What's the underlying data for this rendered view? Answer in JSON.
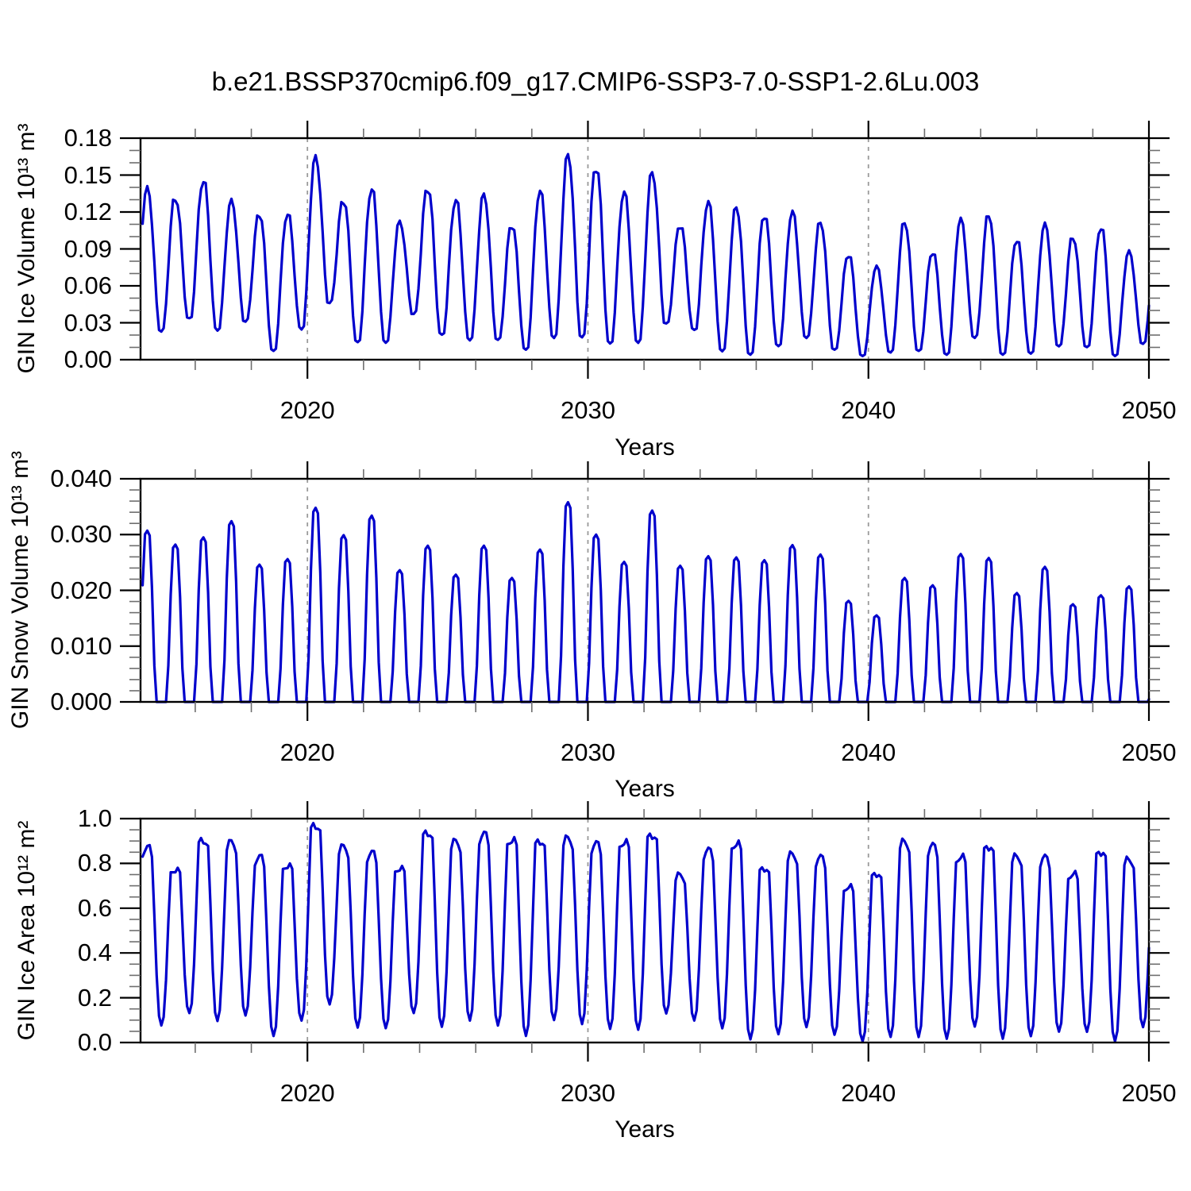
{
  "title": "b.e21.BSSP370cmip6.f09_g17.CMIP6-SSP3-7.0-SSP1-2.6Lu.003",
  "colors": {
    "line": "#0000cc",
    "frame": "#000000",
    "minor_tick": "#6e6e6e",
    "gridline": "#9a9a9a"
  },
  "x_axis": {
    "label": "Years",
    "min": 2014.05,
    "max": 2050,
    "major_ticks": [
      2020,
      2030,
      2040,
      2050
    ],
    "major_tick_labels": [
      "2020",
      "2030",
      "2040",
      "2050"
    ],
    "minor_tick_interval": 2,
    "dashed_gridlines": [
      2020,
      2030,
      2040
    ]
  },
  "chart_data": [
    {
      "type": "line",
      "name": "gin-ice-volume",
      "ylabel": "GIN Ice Volume 10¹³ m³",
      "xlabel": "Years",
      "ylim": [
        0,
        0.18
      ],
      "ytick_values": [
        0.0,
        0.03,
        0.06,
        0.09,
        0.12,
        0.15,
        0.18
      ],
      "ytick_labels": [
        "0.00",
        "0.03",
        "0.06",
        "0.09",
        "0.12",
        "0.15",
        "0.18"
      ],
      "yminor_step": 0.01,
      "seasonal_series": {
        "years": [
          2014,
          2015,
          2016,
          2017,
          2018,
          2019,
          2020,
          2021,
          2022,
          2023,
          2024,
          2025,
          2026,
          2027,
          2028,
          2029,
          2030,
          2031,
          2032,
          2033,
          2034,
          2035,
          2036,
          2037,
          2038,
          2039,
          2040,
          2041,
          2042,
          2043,
          2044,
          2045,
          2046,
          2047,
          2048,
          2049
        ],
        "winter_max": [
          0.138,
          0.131,
          0.145,
          0.128,
          0.118,
          0.118,
          0.163,
          0.129,
          0.138,
          0.111,
          0.139,
          0.129,
          0.133,
          0.109,
          0.136,
          0.165,
          0.156,
          0.135,
          0.151,
          0.109,
          0.127,
          0.123,
          0.117,
          0.119,
          0.111,
          0.085,
          0.075,
          0.111,
          0.087,
          0.113,
          0.117,
          0.097,
          0.109,
          0.099,
          0.107,
          0.087
        ],
        "summer_min": [
          0.023,
          0.033,
          0.024,
          0.031,
          0.007,
          0.025,
          0.046,
          0.014,
          0.014,
          0.037,
          0.02,
          0.016,
          0.016,
          0.008,
          0.018,
          0.018,
          0.013,
          0.014,
          0.029,
          0.024,
          0.007,
          0.004,
          0.011,
          0.018,
          0.008,
          0.003,
          0.006,
          0.007,
          0.004,
          0.018,
          0.004,
          0.005,
          0.011,
          0.01,
          0.003,
          0.013
        ]
      }
    },
    {
      "type": "line",
      "name": "gin-snow-volume",
      "ylabel": "GIN Snow Volume 10¹³ m³",
      "xlabel": "Years",
      "ylim": [
        0,
        0.04
      ],
      "ytick_values": [
        0.0,
        0.01,
        0.02,
        0.03,
        0.04
      ],
      "ytick_labels": [
        "0.000",
        "0.010",
        "0.020",
        "0.030",
        "0.040"
      ],
      "yminor_step": 0.002,
      "seasonal_series": {
        "years": [
          2014,
          2015,
          2016,
          2017,
          2018,
          2019,
          2020,
          2021,
          2022,
          2023,
          2024,
          2025,
          2026,
          2027,
          2028,
          2029,
          2030,
          2031,
          2032,
          2033,
          2034,
          2035,
          2036,
          2037,
          2038,
          2039,
          2040,
          2041,
          2042,
          2043,
          2044,
          2045,
          2046,
          2047,
          2048,
          2049
        ],
        "winter_max": [
          0.0307,
          0.0282,
          0.0295,
          0.0324,
          0.0246,
          0.0256,
          0.0348,
          0.0299,
          0.0334,
          0.0236,
          0.028,
          0.0228,
          0.028,
          0.0222,
          0.0273,
          0.0358,
          0.03,
          0.0251,
          0.0343,
          0.0244,
          0.0261,
          0.0259,
          0.0254,
          0.0281,
          0.0264,
          0.0181,
          0.0155,
          0.0222,
          0.0209,
          0.0265,
          0.0258,
          0.0195,
          0.0242,
          0.0175,
          0.0191,
          0.0207
        ],
        "summer_min": [
          0,
          0,
          0,
          0,
          0,
          0,
          0,
          0,
          0,
          0,
          0,
          0,
          0,
          0,
          0,
          0,
          0,
          0,
          0,
          0,
          0,
          0,
          0,
          0,
          0,
          0,
          0,
          0,
          0,
          0,
          0,
          0,
          0,
          0,
          0,
          0
        ]
      }
    },
    {
      "type": "line",
      "name": "gin-ice-area",
      "ylabel": "GIN Ice Area 10¹² m²",
      "xlabel": "Years",
      "ylim": [
        0,
        1.0
      ],
      "ytick_values": [
        0.0,
        0.2,
        0.4,
        0.6,
        0.8,
        1.0
      ],
      "ytick_labels": [
        "0.0",
        "0.2",
        "0.4",
        "0.6",
        "0.8",
        "1.0"
      ],
      "yminor_step": 0.05,
      "seasonal_series": {
        "years": [
          2014,
          2015,
          2016,
          2017,
          2018,
          2019,
          2020,
          2021,
          2022,
          2023,
          2024,
          2025,
          2026,
          2027,
          2028,
          2029,
          2030,
          2031,
          2032,
          2033,
          2034,
          2035,
          2036,
          2037,
          2038,
          2039,
          2040,
          2041,
          2042,
          2043,
          2044,
          2045,
          2046,
          2047,
          2048,
          2049
        ],
        "winter_max": [
          0.867,
          0.772,
          0.902,
          0.89,
          0.825,
          0.79,
          0.969,
          0.87,
          0.843,
          0.778,
          0.937,
          0.894,
          0.926,
          0.904,
          0.899,
          0.908,
          0.884,
          0.894,
          0.926,
          0.745,
          0.855,
          0.887,
          0.778,
          0.837,
          0.823,
          0.695,
          0.754,
          0.893,
          0.875,
          0.828,
          0.875,
          0.828,
          0.823,
          0.752,
          0.851,
          0.814
        ],
        "summer_min": [
          0.076,
          0.129,
          0.096,
          0.123,
          0.029,
          0.096,
          0.17,
          0.068,
          0.064,
          0.129,
          0.07,
          0.1,
          0.076,
          0.029,
          0.1,
          0.084,
          0.061,
          0.056,
          0.129,
          0.1,
          0.064,
          0.014,
          0.037,
          0.07,
          0.035,
          0.005,
          0.025,
          0.025,
          0.017,
          0.07,
          0.017,
          0.029,
          0.049,
          0.047,
          0.005,
          0.07
        ]
      }
    }
  ]
}
